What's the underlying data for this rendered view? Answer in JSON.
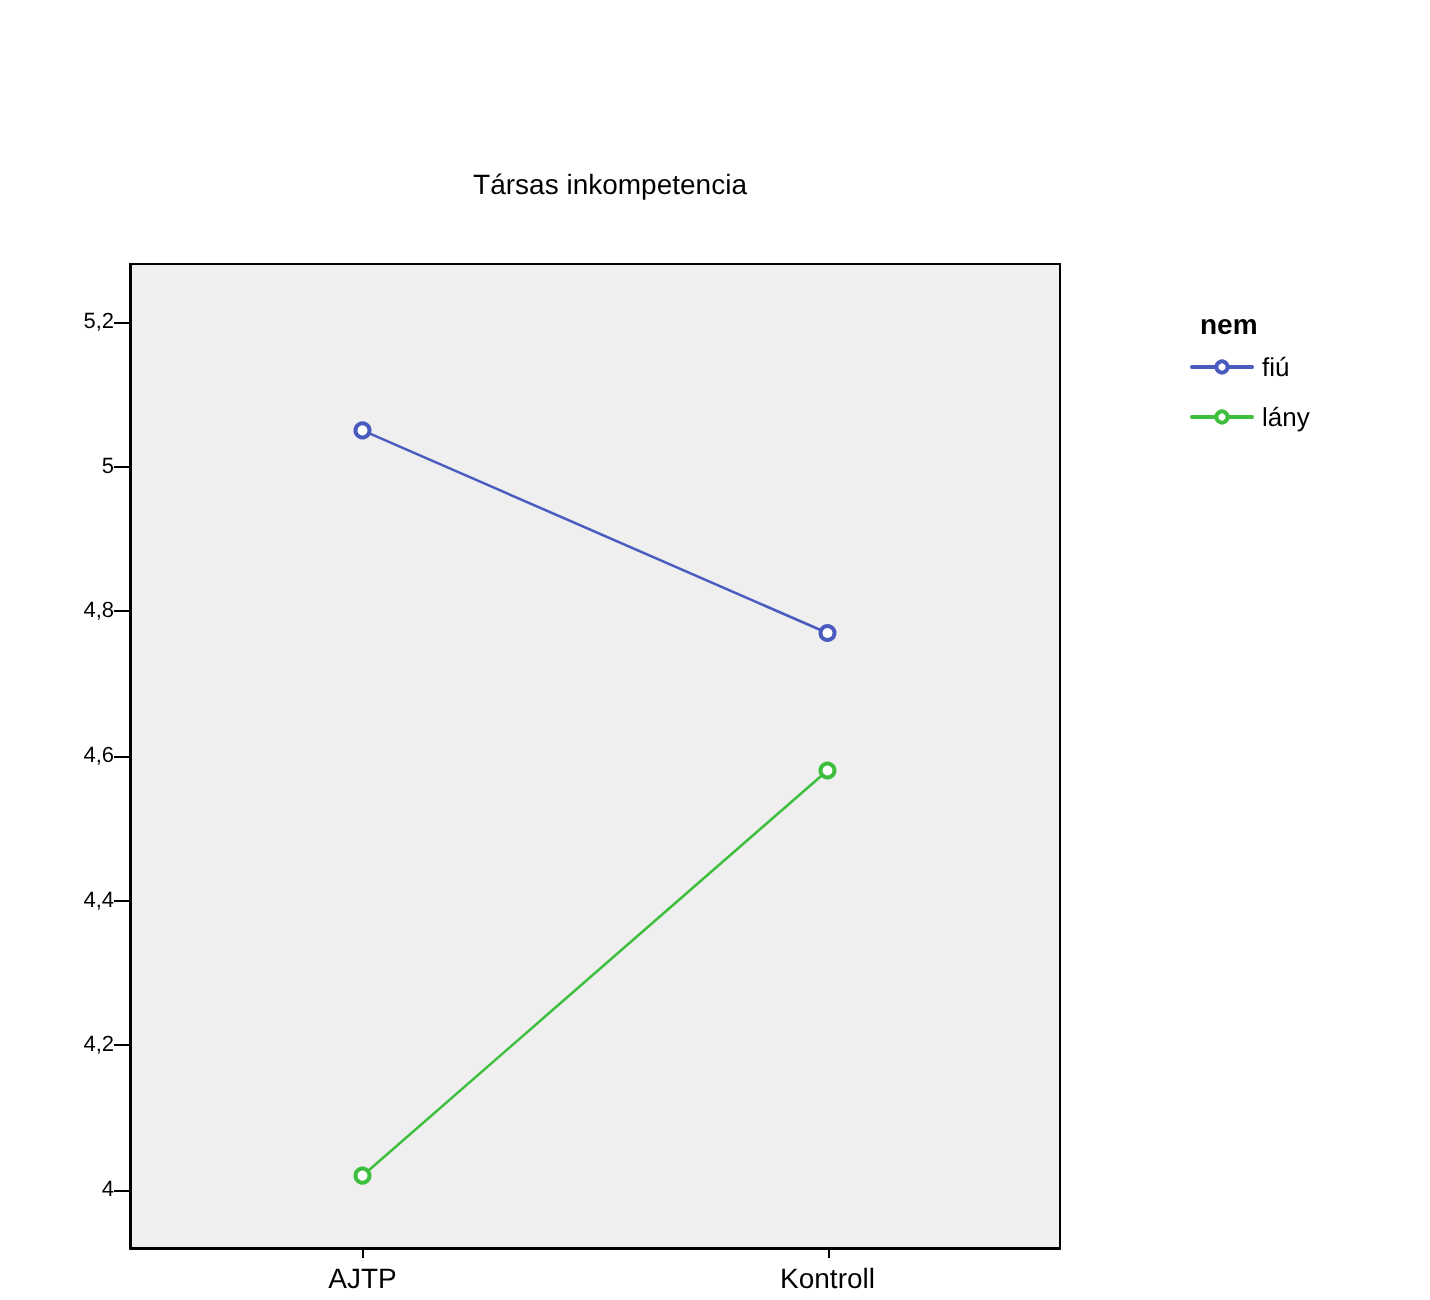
{
  "chart_data": {
    "type": "line",
    "title": "Társas inkompetencia",
    "legend_title": "nem",
    "categories": [
      "AJTP",
      "Kontroll"
    ],
    "series": [
      {
        "name": "fiú",
        "color": "#4a5bbf",
        "values": [
          5.05,
          4.77
        ]
      },
      {
        "name": "lány",
        "color": "#3dbf3d",
        "values": [
          4.02,
          4.58
        ]
      }
    ],
    "ylim": [
      3.92,
      5.28
    ],
    "yticks": [
      {
        "value": 4,
        "label": "4"
      },
      {
        "value": 4.2,
        "label": "4,2"
      },
      {
        "value": 4.4,
        "label": "4,4"
      },
      {
        "value": 4.6,
        "label": "4,6"
      },
      {
        "value": 4.8,
        "label": "4,8"
      },
      {
        "value": 5,
        "label": "5"
      },
      {
        "value": 5.2,
        "label": "5,2"
      }
    ],
    "grid": false,
    "legend": "top right",
    "marker": "circle",
    "line_style": "solid"
  }
}
